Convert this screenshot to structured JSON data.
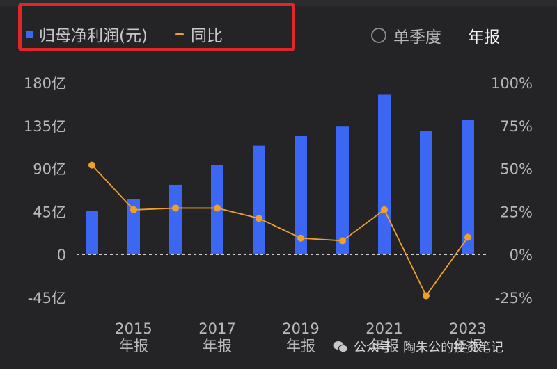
{
  "legend": {
    "bar_label": "归母净利润(元)",
    "line_label": "同比"
  },
  "toggle": {
    "quarterly_label": "单季度",
    "annual_label": "年报"
  },
  "watermark": "公众号 · 陶朱公的投资笔记",
  "colors": {
    "bar": "#3b67f2",
    "line": "#f0a02a",
    "highlight_box": "#e0262b"
  },
  "chart_data": {
    "type": "bar",
    "title": "",
    "categories": [
      "2014",
      "2015",
      "2016",
      "2017",
      "2018",
      "2019",
      "2020",
      "2021",
      "2022",
      "2023"
    ],
    "x_tick_labels": [
      {
        "category": "2015",
        "line1": "2015",
        "line2": "年报"
      },
      {
        "category": "2017",
        "line1": "2017",
        "line2": "年报"
      },
      {
        "category": "2019",
        "line1": "2019",
        "line2": "年报"
      },
      {
        "category": "2021",
        "line1": "2021",
        "line2": "年报"
      },
      {
        "category": "2023",
        "line1": "2023",
        "line2": "年报"
      }
    ],
    "series": [
      {
        "name": "归母净利润(元)",
        "type": "bar",
        "axis": "left",
        "unit": "亿",
        "values": [
          46,
          58,
          73,
          94,
          114,
          124,
          134,
          168,
          129,
          141
        ]
      },
      {
        "name": "同比",
        "type": "line",
        "axis": "right",
        "unit": "%",
        "values": [
          52,
          26,
          27,
          27,
          21,
          9.5,
          8,
          26,
          -24,
          10
        ]
      }
    ],
    "y_left": {
      "ylim": [
        -45,
        180
      ],
      "ticks": [
        180,
        135,
        90,
        45,
        0,
        -45
      ],
      "tick_labels": [
        "180亿",
        "135亿",
        "90亿",
        "45亿",
        "0",
        "-45亿"
      ]
    },
    "y_right": {
      "ylim": [
        -25,
        100
      ],
      "ticks": [
        100,
        75,
        50,
        25,
        0,
        -25
      ],
      "tick_labels": [
        "100%",
        "75%",
        "50%",
        "25%",
        "0%",
        "-25%"
      ]
    },
    "grid": false,
    "zero_line": "dashed",
    "legend_position": "top-left"
  }
}
